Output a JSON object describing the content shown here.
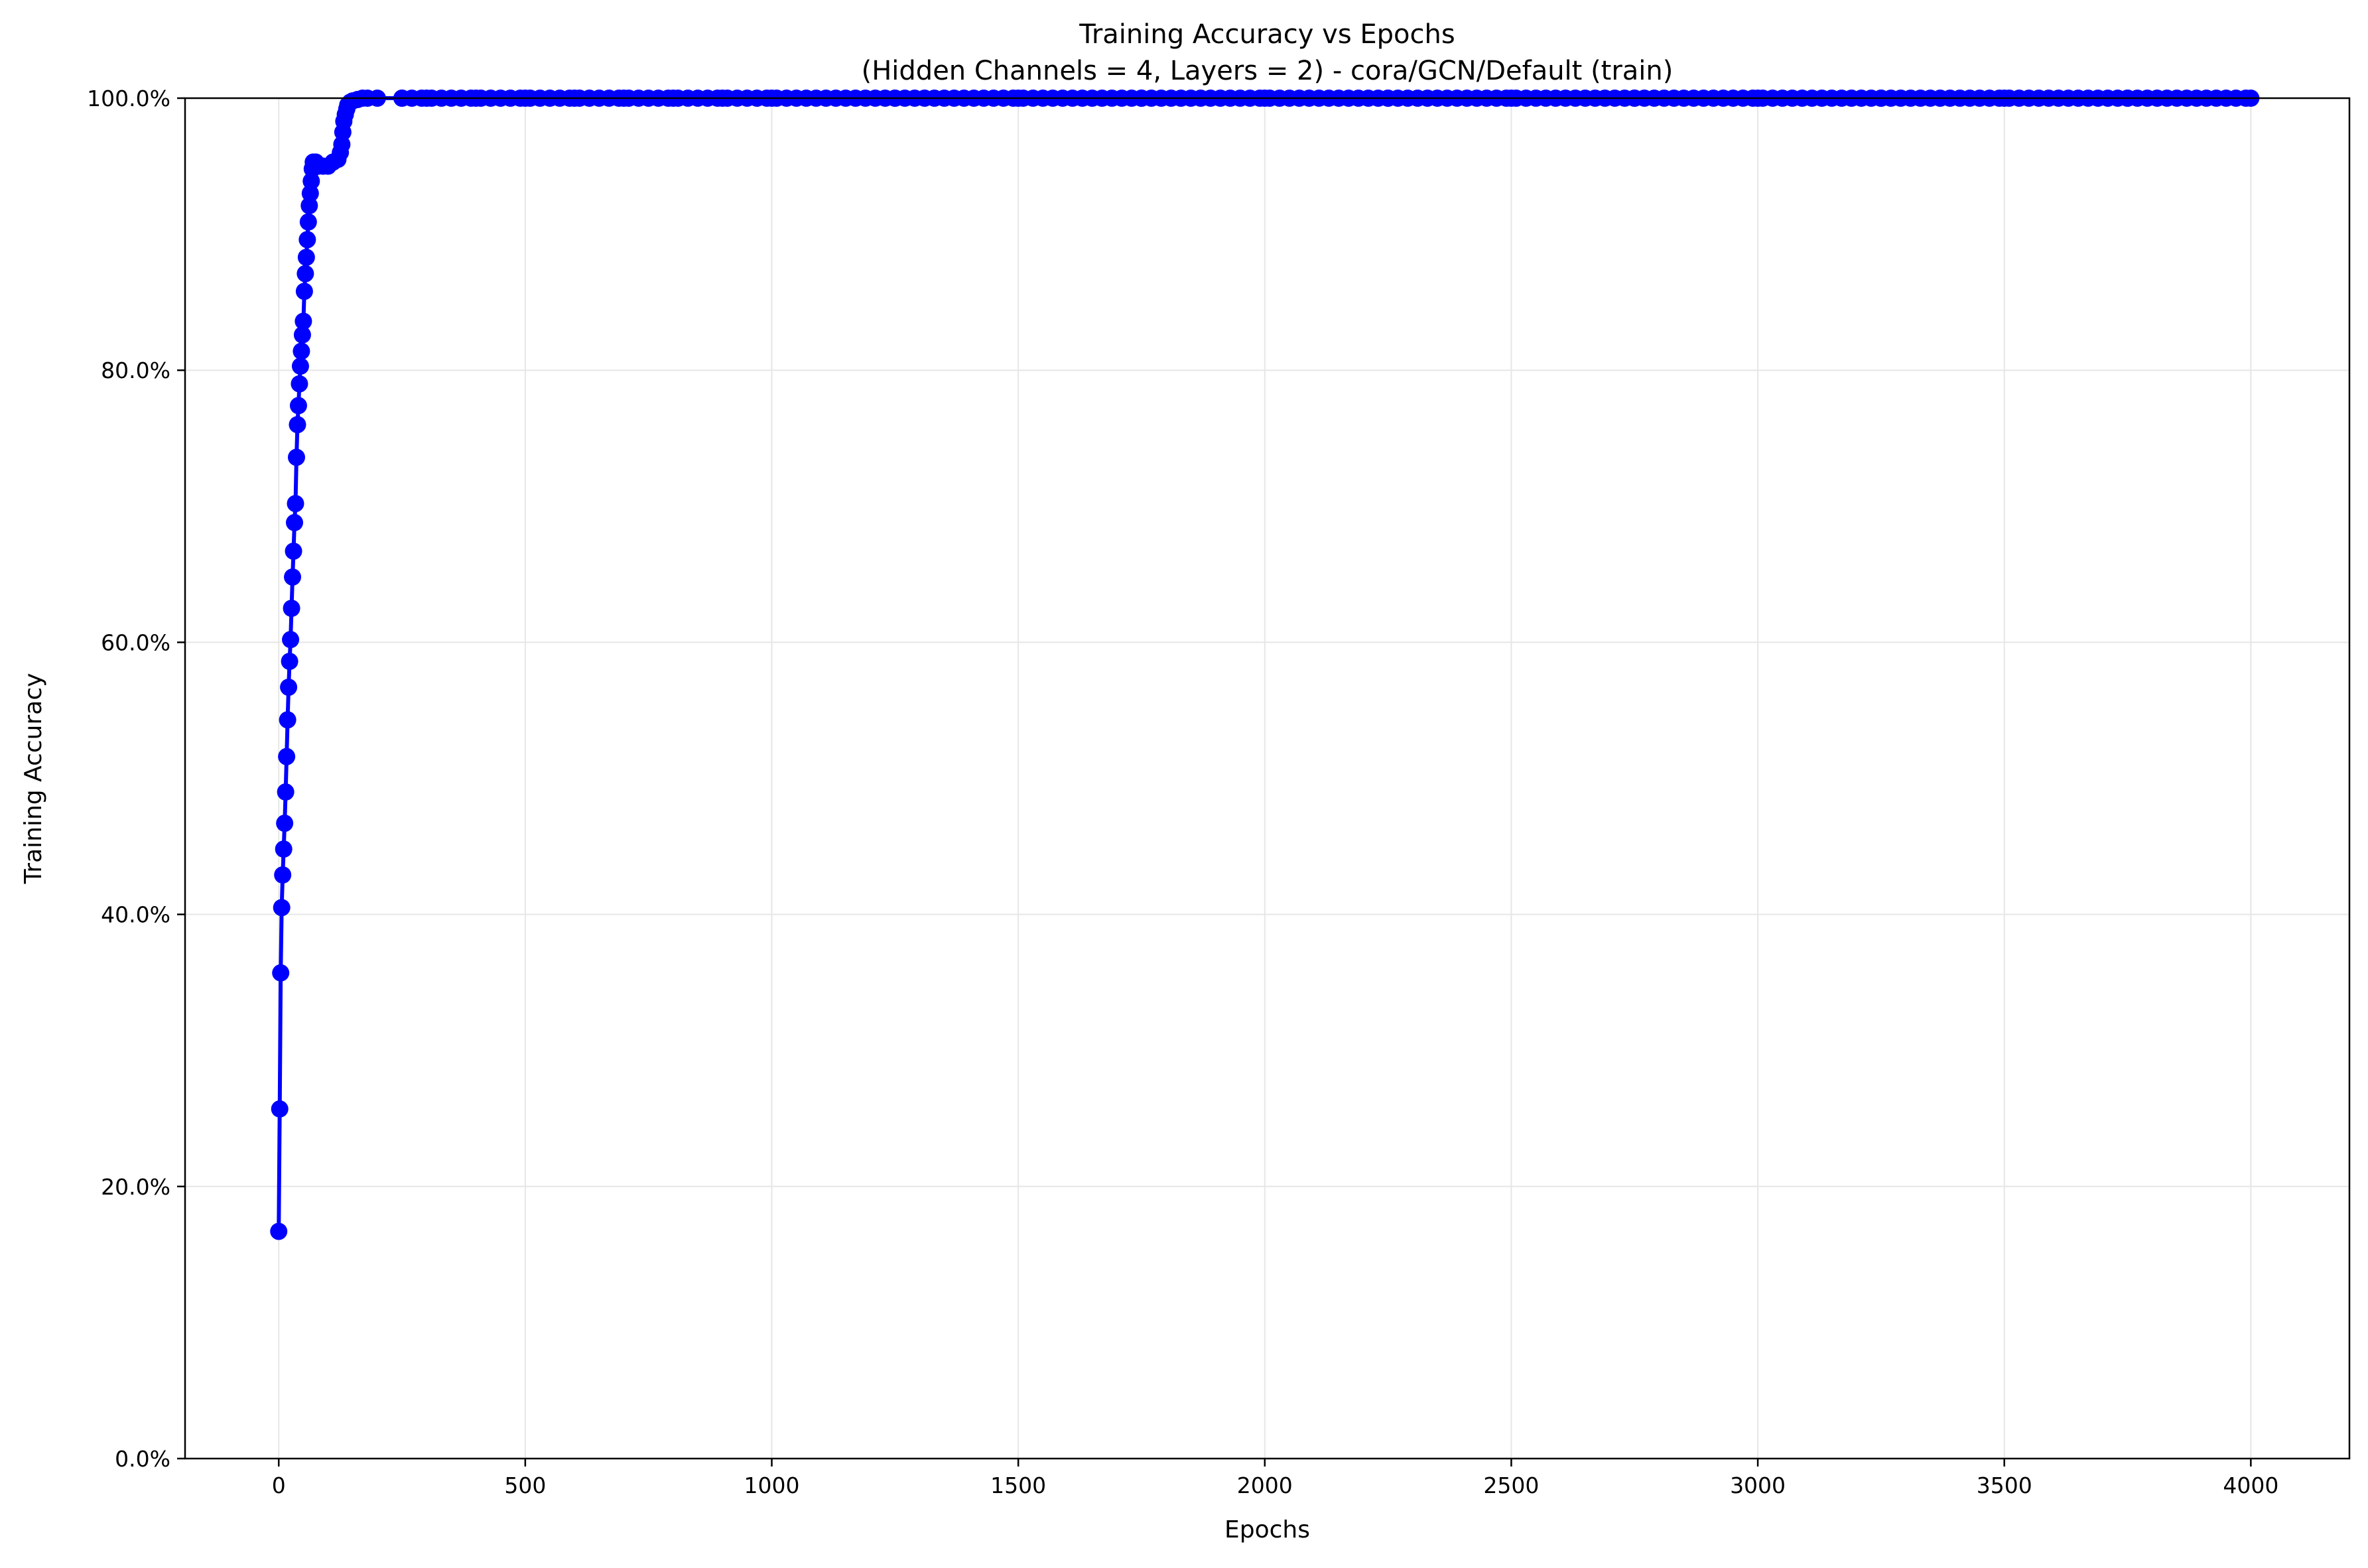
{
  "chart_data": {
    "type": "line",
    "title": "Training Accuracy vs Epochs",
    "subtitle": "(Hidden Channels = 4, Layers = 2) - cora/GCN/Default (train)",
    "xlabel": "Epochs",
    "ylabel": "Training Accuracy",
    "xlim": [
      -190,
      4200
    ],
    "ylim": [
      0,
      100
    ],
    "x_ticks": [
      0,
      500,
      1000,
      1500,
      2000,
      2500,
      3000,
      3500,
      4000
    ],
    "x_tick_labels": [
      "0",
      "500",
      "1000",
      "1500",
      "2000",
      "2500",
      "3000",
      "3500",
      "4000"
    ],
    "y_ticks": [
      0,
      20,
      40,
      60,
      80,
      100
    ],
    "y_tick_labels": [
      "0.0%",
      "20.0%",
      "40.0%",
      "60.0%",
      "80.0%",
      "100.0%"
    ],
    "grid": true,
    "line_color": "#0000ff",
    "marker": "circle",
    "series": [
      {
        "x": [
          0,
          2,
          4,
          6,
          8,
          10,
          12,
          14,
          16,
          18,
          20,
          22,
          24,
          26,
          28,
          30,
          32,
          34,
          36,
          38,
          40,
          42,
          44,
          46,
          48,
          50,
          52,
          54,
          56,
          58,
          60,
          62,
          64,
          66,
          68,
          70,
          75,
          80,
          90,
          100,
          110,
          120,
          125,
          128,
          130,
          132,
          135,
          138,
          140,
          145,
          150,
          160,
          170,
          180,
          200,
          250,
          300,
          400,
          500,
          600,
          700,
          800,
          900,
          1000,
          1250,
          1500,
          1750,
          2000,
          2250,
          2500,
          2750,
          3000,
          3250,
          3500,
          3750,
          4000
        ],
        "y": [
          16.7,
          25.7,
          35.7,
          40.5,
          42.9,
          44.8,
          46.7,
          49.0,
          51.6,
          54.3,
          56.7,
          58.6,
          60.2,
          62.5,
          64.8,
          66.7,
          68.8,
          70.2,
          73.6,
          76.0,
          77.4,
          79.0,
          80.3,
          81.4,
          82.6,
          83.6,
          85.8,
          87.1,
          88.3,
          89.6,
          90.9,
          92.1,
          93.0,
          93.9,
          94.8,
          95.3,
          95.3,
          95.0,
          95.0,
          95.0,
          95.3,
          95.5,
          96.0,
          96.6,
          97.5,
          98.3,
          98.8,
          99.2,
          99.5,
          99.7,
          99.8,
          99.9,
          100,
          100,
          100,
          100,
          100,
          100,
          100,
          100,
          100,
          100,
          100,
          100,
          100,
          100,
          100,
          100,
          100,
          100,
          100,
          100,
          100,
          100,
          100,
          100
        ]
      }
    ]
  }
}
